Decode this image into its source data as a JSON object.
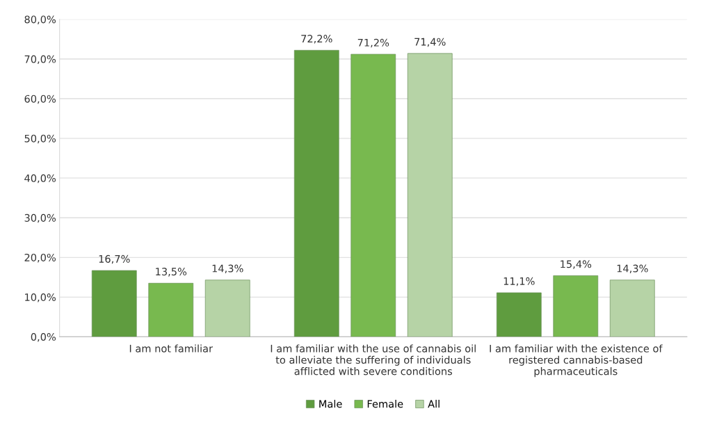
{
  "chart_data": {
    "type": "bar",
    "categories": [
      "I am not familiar",
      "I am familiar with the use of cannabis oil\nto alleviate the suffering of individuals\nafflicted with severe conditions",
      "I am familiar with the existence of\nregistered cannabis-based\npharmaceuticals"
    ],
    "series": [
      {
        "name": "Male",
        "color": "#5f9c3f",
        "values": [
          16.7,
          72.2,
          11.1
        ],
        "value_labels": [
          "16,7%",
          "72,2%",
          "11,1%"
        ]
      },
      {
        "name": "Female",
        "color": "#78b94f",
        "values": [
          13.5,
          71.2,
          15.4
        ],
        "value_labels": [
          "13,5%",
          "71,2%",
          "15,4%"
        ]
      },
      {
        "name": "All",
        "color": "#b6d3a6",
        "values": [
          14.3,
          71.4,
          14.3
        ],
        "value_labels": [
          "14,3%",
          "71,4%",
          "14,3%"
        ]
      }
    ],
    "ylim": [
      0,
      80
    ],
    "yticks": [
      {
        "value": 0,
        "label": "0,0%"
      },
      {
        "value": 10,
        "label": "10,0%"
      },
      {
        "value": 20,
        "label": "20,0%"
      },
      {
        "value": 30,
        "label": "30,0%"
      },
      {
        "value": 40,
        "label": "40,0%"
      },
      {
        "value": 50,
        "label": "50,0%"
      },
      {
        "value": 60,
        "label": "60,0%"
      },
      {
        "value": 70,
        "label": "70,0%"
      },
      {
        "value": 80,
        "label": "80,0%"
      }
    ],
    "grid": "y",
    "legend": "bottom"
  }
}
